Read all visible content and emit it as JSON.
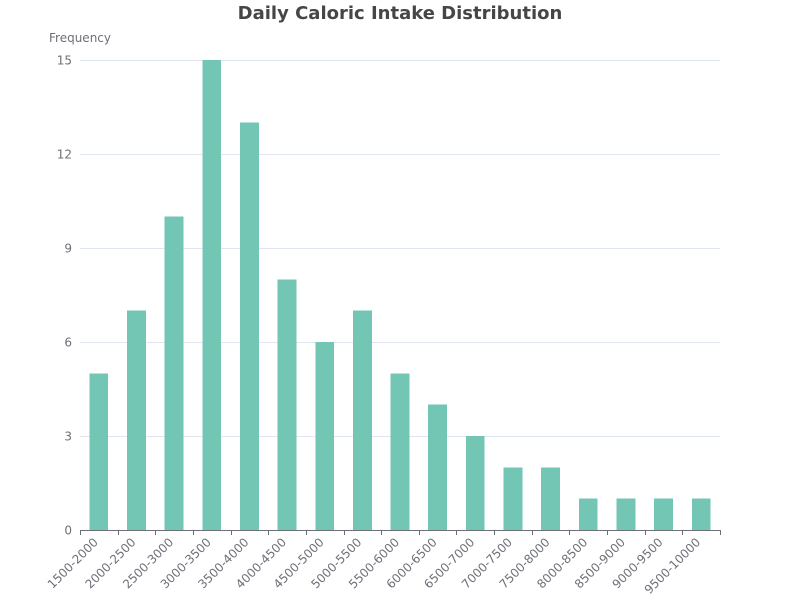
{
  "chart_data": {
    "type": "bar",
    "title": "Daily Caloric Intake Distribution",
    "ylabel": "Frequency",
    "xlabel": "",
    "categories": [
      "1500-2000",
      "2000-2500",
      "2500-3000",
      "3000-3500",
      "3500-4000",
      "4000-4500",
      "4500-5000",
      "5000-5500",
      "5500-6000",
      "6000-6500",
      "6500-7000",
      "7000-7500",
      "7500-8000",
      "8000-8500",
      "8500-9000",
      "9000-9500",
      "9500-10000"
    ],
    "values": [
      5,
      7,
      10,
      15,
      13,
      8,
      6,
      7,
      5,
      4,
      3,
      2,
      2,
      1,
      1,
      1,
      1
    ],
    "ylim": [
      0,
      15
    ],
    "yticks": [
      "0",
      "3",
      "6",
      "9",
      "12",
      "15"
    ],
    "grid": true,
    "colors": {
      "bar": "#73c5b4",
      "title": "#464646",
      "text": "#6e7079"
    }
  }
}
